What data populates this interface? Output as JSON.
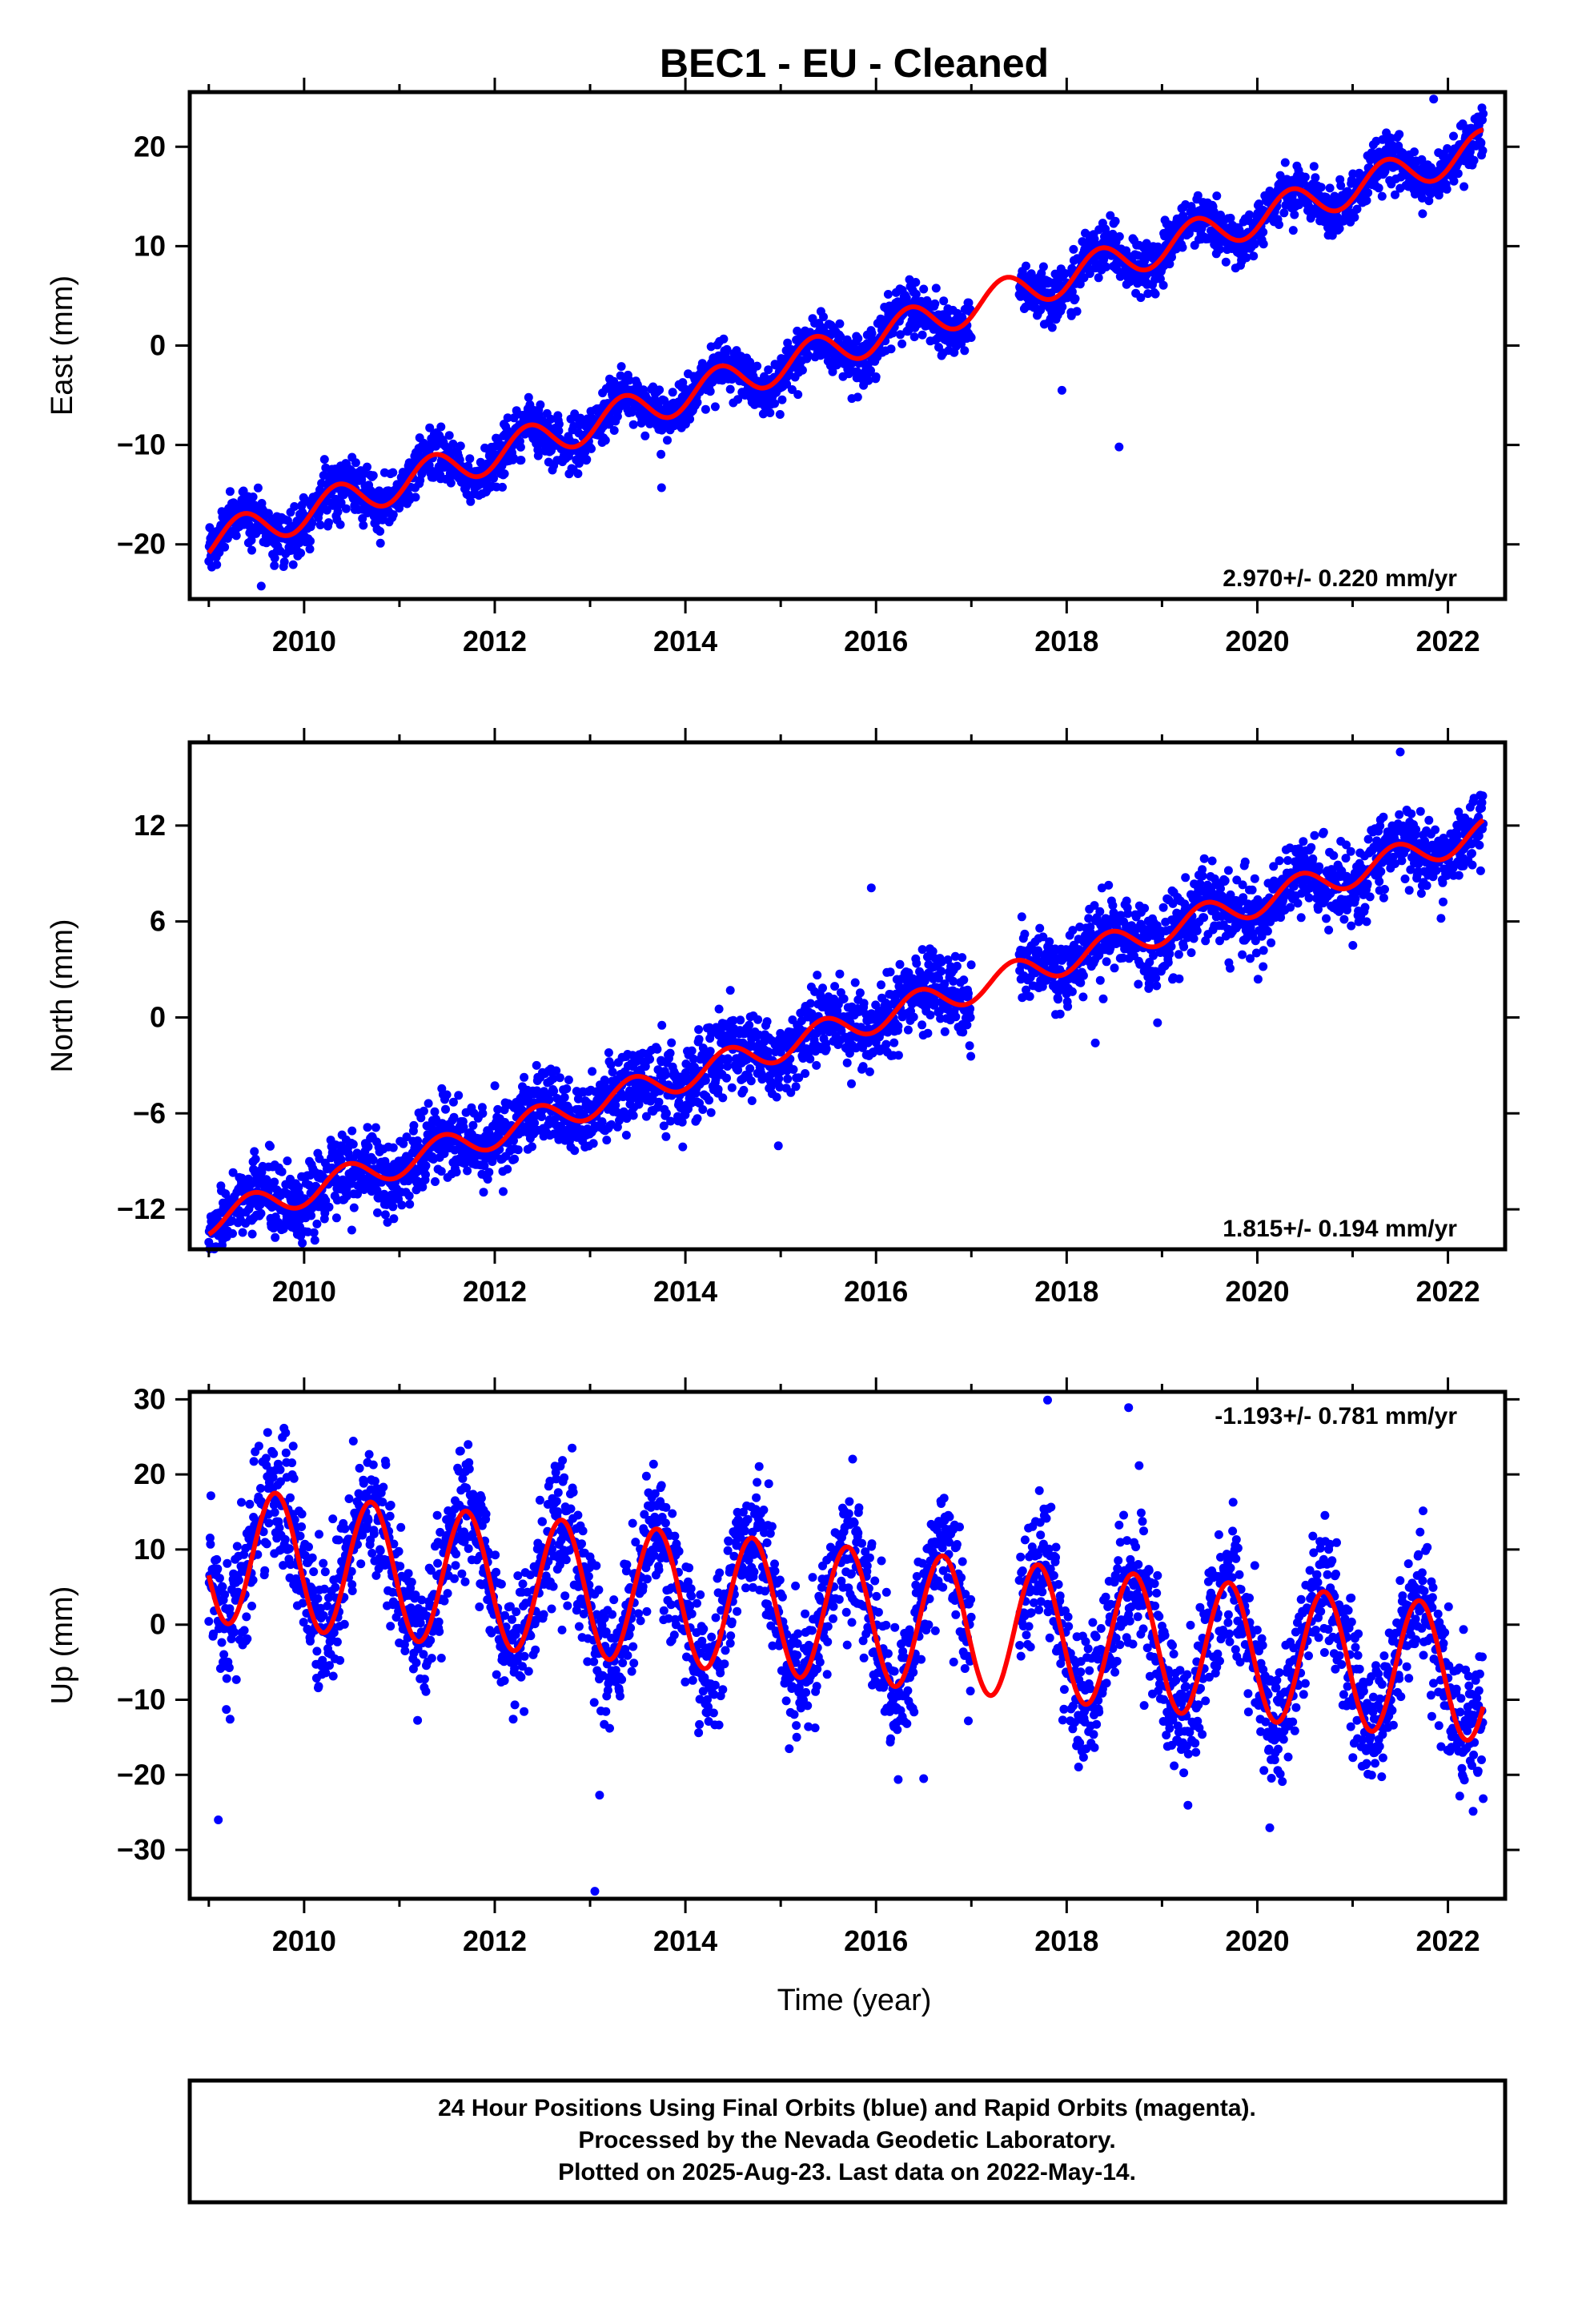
{
  "chart_data": [
    {
      "type": "scatter",
      "title": "BEC1  - EU - Cleaned",
      "ylabel": "East (mm)",
      "xlabel": "",
      "xlim": [
        2008.8,
        2022.6
      ],
      "ylim": [
        -25.5,
        25.5
      ],
      "xticks": [
        2010,
        2012,
        2014,
        2016,
        2018,
        2020,
        2022
      ],
      "yticks": [
        -20,
        -10,
        0,
        10,
        20
      ],
      "grid": false,
      "rate_label": "2.970+/- 0.220 mm/yr",
      "rate_position": "bottom-right",
      "series": [
        {
          "style": "points",
          "color": "#0000ff",
          "x_range": [
            2009.0,
            2022.37
          ],
          "gap": [
            2017.0,
            2017.5
          ],
          "trend": {
            "slope": 2.97,
            "ref_year": 2016.0,
            "offset": 1.0
          },
          "annual_amplitude": 1.8,
          "annual_phase_year": 2016.35,
          "scatter_sd": 1.3,
          "outliers": [
            [
              2009.55,
              -24.2
            ],
            [
              2013.75,
              -14.3
            ],
            [
              2017.95,
              -4.5
            ],
            [
              2018.55,
              -10.2
            ],
            [
              2021.85,
              24.8
            ]
          ]
        },
        {
          "style": "line",
          "color": "#ff0000",
          "x_range": [
            2009.0,
            2022.37
          ],
          "trend": {
            "slope": 2.97,
            "ref_year": 2016.0,
            "offset": 1.0
          },
          "annual_amplitude": 1.8,
          "annual_phase_year": 2016.35
        }
      ]
    },
    {
      "type": "scatter",
      "title": "",
      "ylabel": "North (mm)",
      "xlabel": "",
      "xlim": [
        2008.8,
        2022.6
      ],
      "ylim": [
        -14.5,
        17.2
      ],
      "xticks": [
        2010,
        2012,
        2014,
        2016,
        2018,
        2020,
        2022
      ],
      "yticks": [
        -12,
        -6,
        0,
        6,
        12
      ],
      "grid": false,
      "rate_label": "1.815+/- 0.194 mm/yr",
      "rate_position": "bottom-right",
      "series": [
        {
          "style": "points",
          "color": "#0000ff",
          "x_range": [
            2009.0,
            2022.37
          ],
          "gap": [
            2017.0,
            2017.5
          ],
          "trend": {
            "slope": 1.815,
            "ref_year": 2016.0,
            "offset": 0.0
          },
          "annual_amplitude": 0.9,
          "annual_phase_year": 2016.45,
          "scatter_sd": 1.2,
          "outliers": [
            [
              2010.5,
              -13.3
            ],
            [
              2015.95,
              8.1
            ],
            [
              2018.3,
              -1.6
            ],
            [
              2021.5,
              16.6
            ]
          ]
        },
        {
          "style": "line",
          "color": "#ff0000",
          "x_range": [
            2009.0,
            2022.37
          ],
          "trend": {
            "slope": 1.815,
            "ref_year": 2016.0,
            "offset": 0.0
          },
          "annual_amplitude": 0.9,
          "annual_phase_year": 2016.45
        }
      ]
    },
    {
      "type": "scatter",
      "title": "",
      "ylabel": "Up (mm)",
      "xlabel": "Time (year)",
      "xlim": [
        2008.8,
        2022.6
      ],
      "ylim": [
        -36.5,
        31.0
      ],
      "xticks": [
        2010,
        2012,
        2014,
        2016,
        2018,
        2020,
        2022
      ],
      "yticks": [
        -30,
        -20,
        -10,
        0,
        10,
        20,
        30
      ],
      "grid": false,
      "rate_label": "-1.193+/- 0.781 mm/yr",
      "rate_position": "top-right",
      "series": [
        {
          "style": "points",
          "color": "#0000ff",
          "x_range": [
            2009.0,
            2022.37
          ],
          "gap": [
            2017.0,
            2017.5
          ],
          "trend": {
            "slope": -1.193,
            "ref_year": 2016.0,
            "offset": 1.0
          },
          "annual_amplitude": 9.0,
          "annual_phase_year": 2016.7,
          "scatter_sd": 4.5,
          "outliers": [
            [
              2009.1,
              -26.0
            ],
            [
              2013.1,
              -22.7
            ],
            [
              2013.05,
              -35.5
            ],
            [
              2017.8,
              29.9
            ],
            [
              2018.65,
              28.9
            ],
            [
              2016.5,
              -20.5
            ]
          ]
        },
        {
          "style": "line",
          "color": "#ff0000",
          "x_range": [
            2009.0,
            2022.37
          ],
          "trend": {
            "slope": -1.193,
            "ref_year": 2016.0,
            "offset": 1.0
          },
          "annual_amplitude": 9.0,
          "annual_phase_year": 2016.7
        }
      ]
    }
  ],
  "footer": {
    "line1": "24 Hour Positions Using Final Orbits (blue) and Rapid Orbits (magenta).",
    "line2": "Processed by the Nevada Geodetic Laboratory.",
    "line3": "Plotted on 2025-Aug-23. Last data on 2022-May-14."
  }
}
